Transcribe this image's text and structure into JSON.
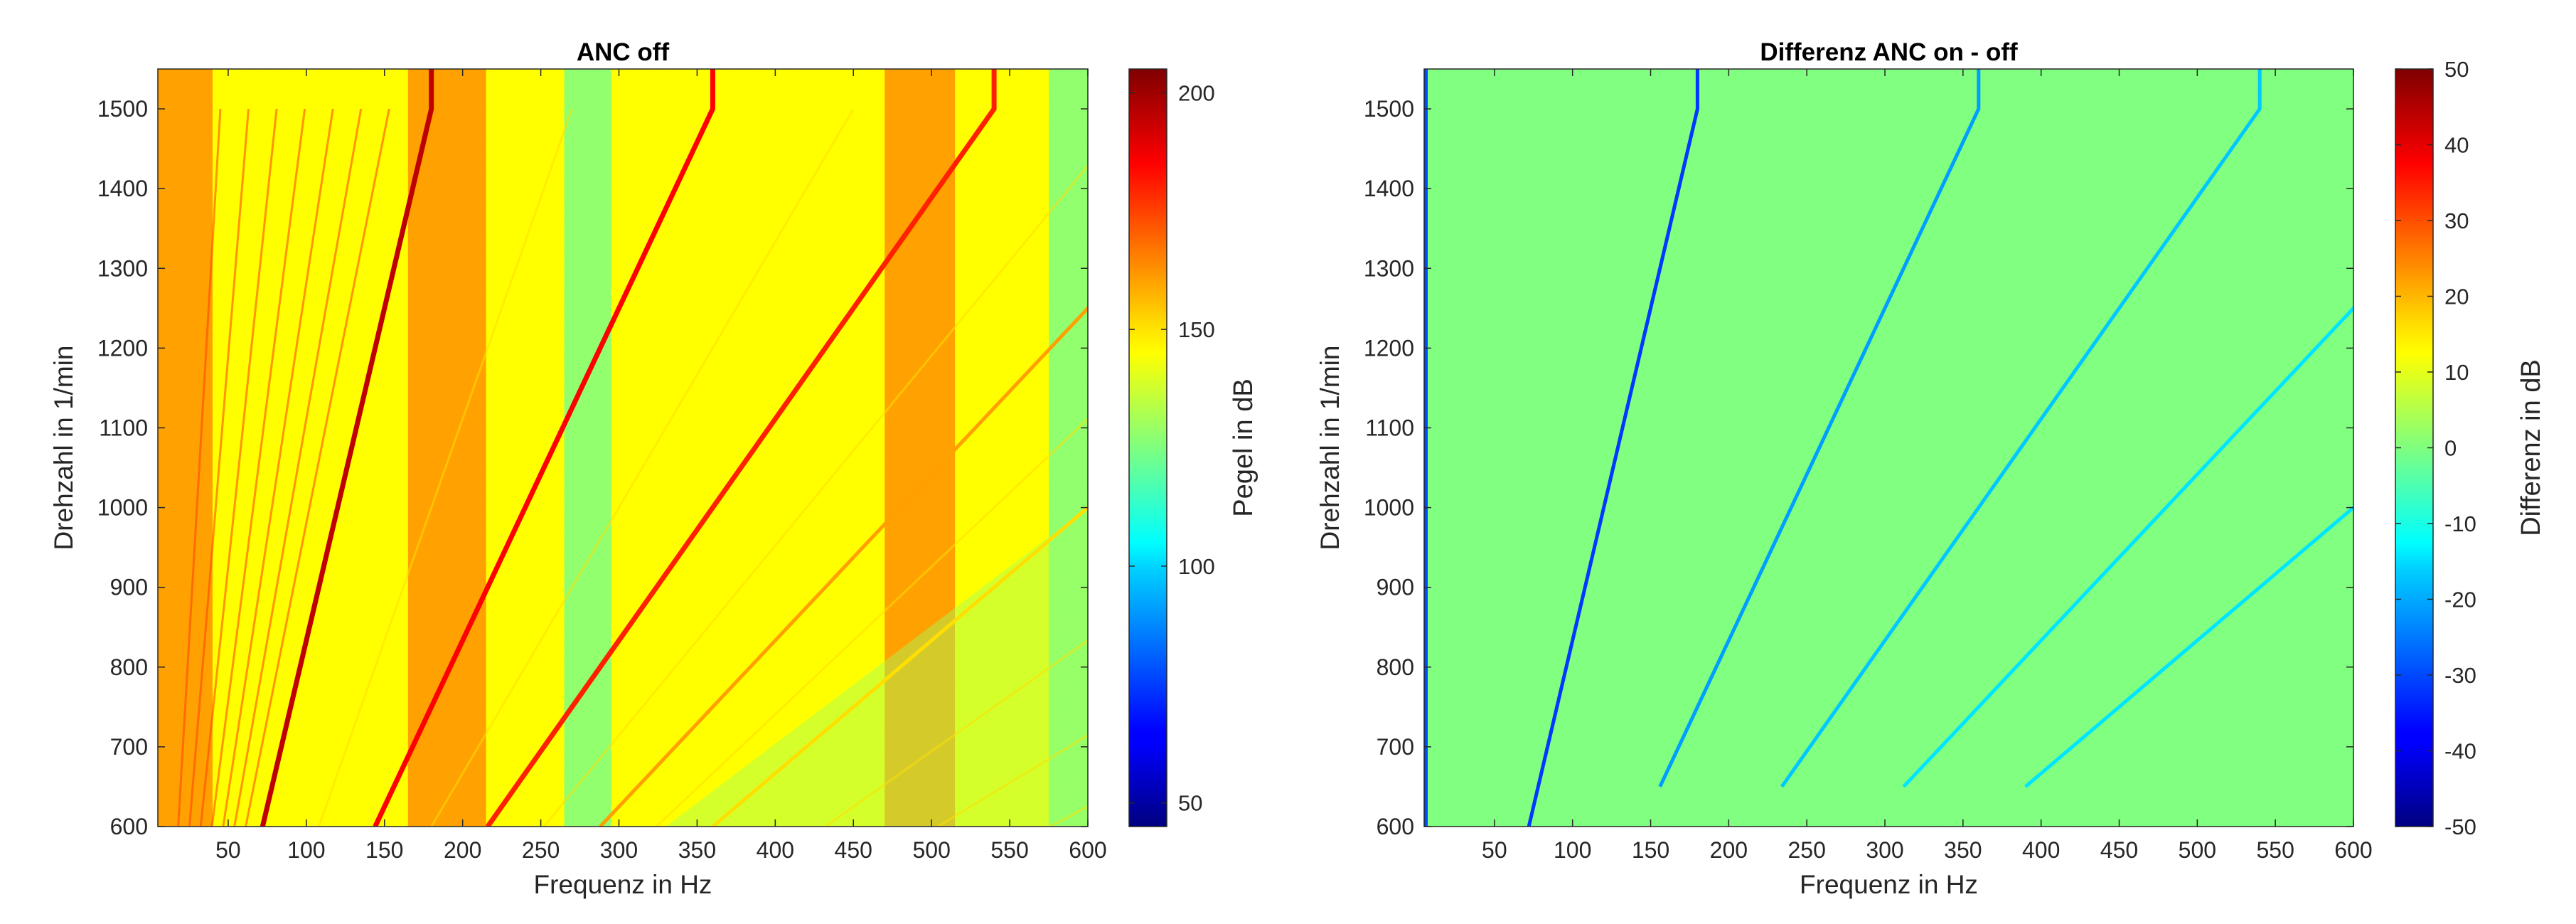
{
  "chart_data": [
    {
      "type": "heatmap",
      "title": "ANC off",
      "xlabel": "Frequenz in Hz",
      "ylabel": "Drehzahl in 1/min",
      "xlim": [
        5,
        600
      ],
      "ylim": [
        600,
        1550
      ],
      "xticks": [
        50,
        100,
        150,
        200,
        250,
        300,
        350,
        400,
        450,
        500,
        550,
        600
      ],
      "yticks": [
        600,
        700,
        800,
        900,
        1000,
        1100,
        1200,
        1300,
        1400,
        1500
      ],
      "colorbar": {
        "label": "Pegel in dB",
        "range": [
          45,
          205
        ],
        "ticks": [
          50,
          100,
          150,
          200
        ],
        "colormap": "jet"
      },
      "background_level_db": 145,
      "high_level_bands_hz": [
        [
          5,
          40
        ],
        [
          165,
          215
        ],
        [
          470,
          515
        ]
      ],
      "low_level_bands_hz": [
        [
          265,
          295
        ],
        [
          575,
          600
        ]
      ],
      "order_lines": [
        {
          "order": 1,
          "level_db": 195
        },
        {
          "order": 2,
          "level_db": 185
        },
        {
          "order": 3,
          "level_db": 180
        },
        {
          "order": 4,
          "level_db": 160
        },
        {
          "order": 5,
          "level_db": 150
        }
      ]
    },
    {
      "type": "heatmap",
      "title": "Differenz ANC on - off",
      "xlabel": "Frequenz in Hz",
      "ylabel": "Drehzahl in 1/min",
      "xlim": [
        5,
        600
      ],
      "ylim": [
        600,
        1550
      ],
      "xticks": [
        50,
        100,
        150,
        200,
        250,
        300,
        350,
        400,
        450,
        500,
        550,
        600
      ],
      "yticks": [
        600,
        700,
        800,
        900,
        1000,
        1100,
        1200,
        1300,
        1400,
        1500
      ],
      "colorbar": {
        "label": "Differenz in dB",
        "range": [
          -50,
          50
        ],
        "ticks": [
          50,
          40,
          30,
          20,
          10,
          0,
          -10,
          -20,
          -30,
          -40,
          -50
        ],
        "colormap": "jet"
      },
      "background_level_db": 0,
      "order_lines": [
        {
          "order": 1,
          "level_db": -32
        },
        {
          "order": 2,
          "level_db": -22
        },
        {
          "order": 3,
          "level_db": -18
        },
        {
          "order": 4,
          "level_db": -15
        },
        {
          "order": 5,
          "level_db": -15
        }
      ]
    }
  ],
  "order_model": {
    "frequency_hz_per_order_at_1500": 180,
    "plateau_rpm": 1500
  }
}
